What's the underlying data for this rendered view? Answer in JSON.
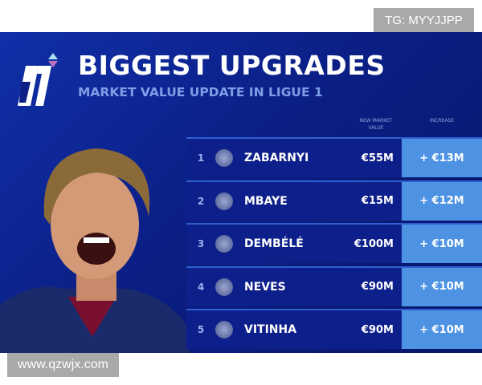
{
  "watermarks": {
    "top": "TG: MYYJJPP",
    "bottom": "www.qzwjx.com"
  },
  "header": {
    "title": "BIGGEST UPGRADES",
    "subtitle": "MARKET VALUE UPDATE IN LIGUE 1"
  },
  "table": {
    "columns": {
      "value": "NEW MARKET VALUE",
      "increase": "INCREASE"
    },
    "rows": [
      {
        "rank": "1",
        "name": "ZABARNYI",
        "value": "€55M",
        "increase": "+ €13M"
      },
      {
        "rank": "2",
        "name": "MBAYE",
        "value": "€15M",
        "increase": "+ €12M"
      },
      {
        "rank": "3",
        "name": "DEMBÉLÉ",
        "value": "€100M",
        "increase": "+ €10M"
      },
      {
        "rank": "4",
        "name": "NEVES",
        "value": "€90M",
        "increase": "+ €10M"
      },
      {
        "rank": "5",
        "name": "VITINHA",
        "value": "€90M",
        "increase": "+ €10M"
      }
    ]
  },
  "colors": {
    "background": "#0b1f86",
    "accent": "#4d92e3",
    "subtitle": "#7f9ee6"
  }
}
